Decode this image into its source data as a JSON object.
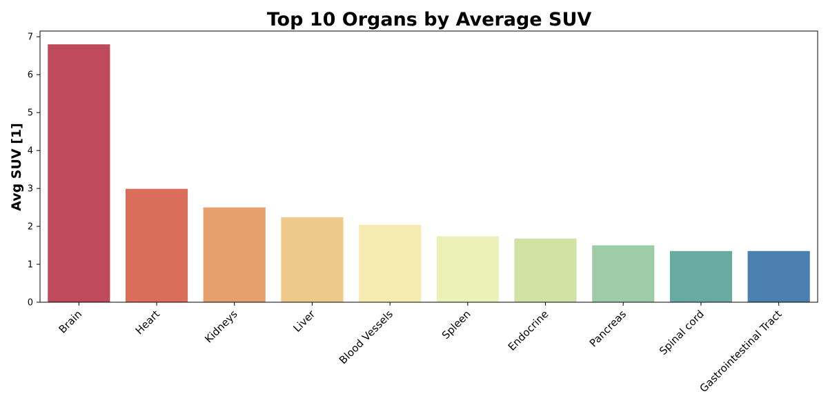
{
  "chart_data": {
    "type": "bar",
    "title": "Top 10 Organs by Average SUV",
    "xlabel": "",
    "ylabel": "Avg SUV [1]",
    "categories": [
      "Brain",
      "Heart",
      "Kidneys",
      "Liver",
      "Blood Vessels",
      "Spleen",
      "Endocrine",
      "Pancreas",
      "Spinal cord",
      "Gastrointestinal Tract"
    ],
    "values": [
      6.8,
      2.99,
      2.5,
      2.24,
      2.04,
      1.74,
      1.68,
      1.5,
      1.35,
      1.35
    ],
    "colors": [
      "#be4a5c",
      "#da6e5a",
      "#e6a06e",
      "#edc98a",
      "#f5eab0",
      "#ebf1b8",
      "#d0e3a4",
      "#9ecca8",
      "#68aba2",
      "#4a7fae"
    ],
    "ylim": [
      0,
      7.15
    ],
    "yticks": [
      0,
      1,
      2,
      3,
      4,
      5,
      6,
      7
    ],
    "grid": false,
    "legend": "none"
  }
}
